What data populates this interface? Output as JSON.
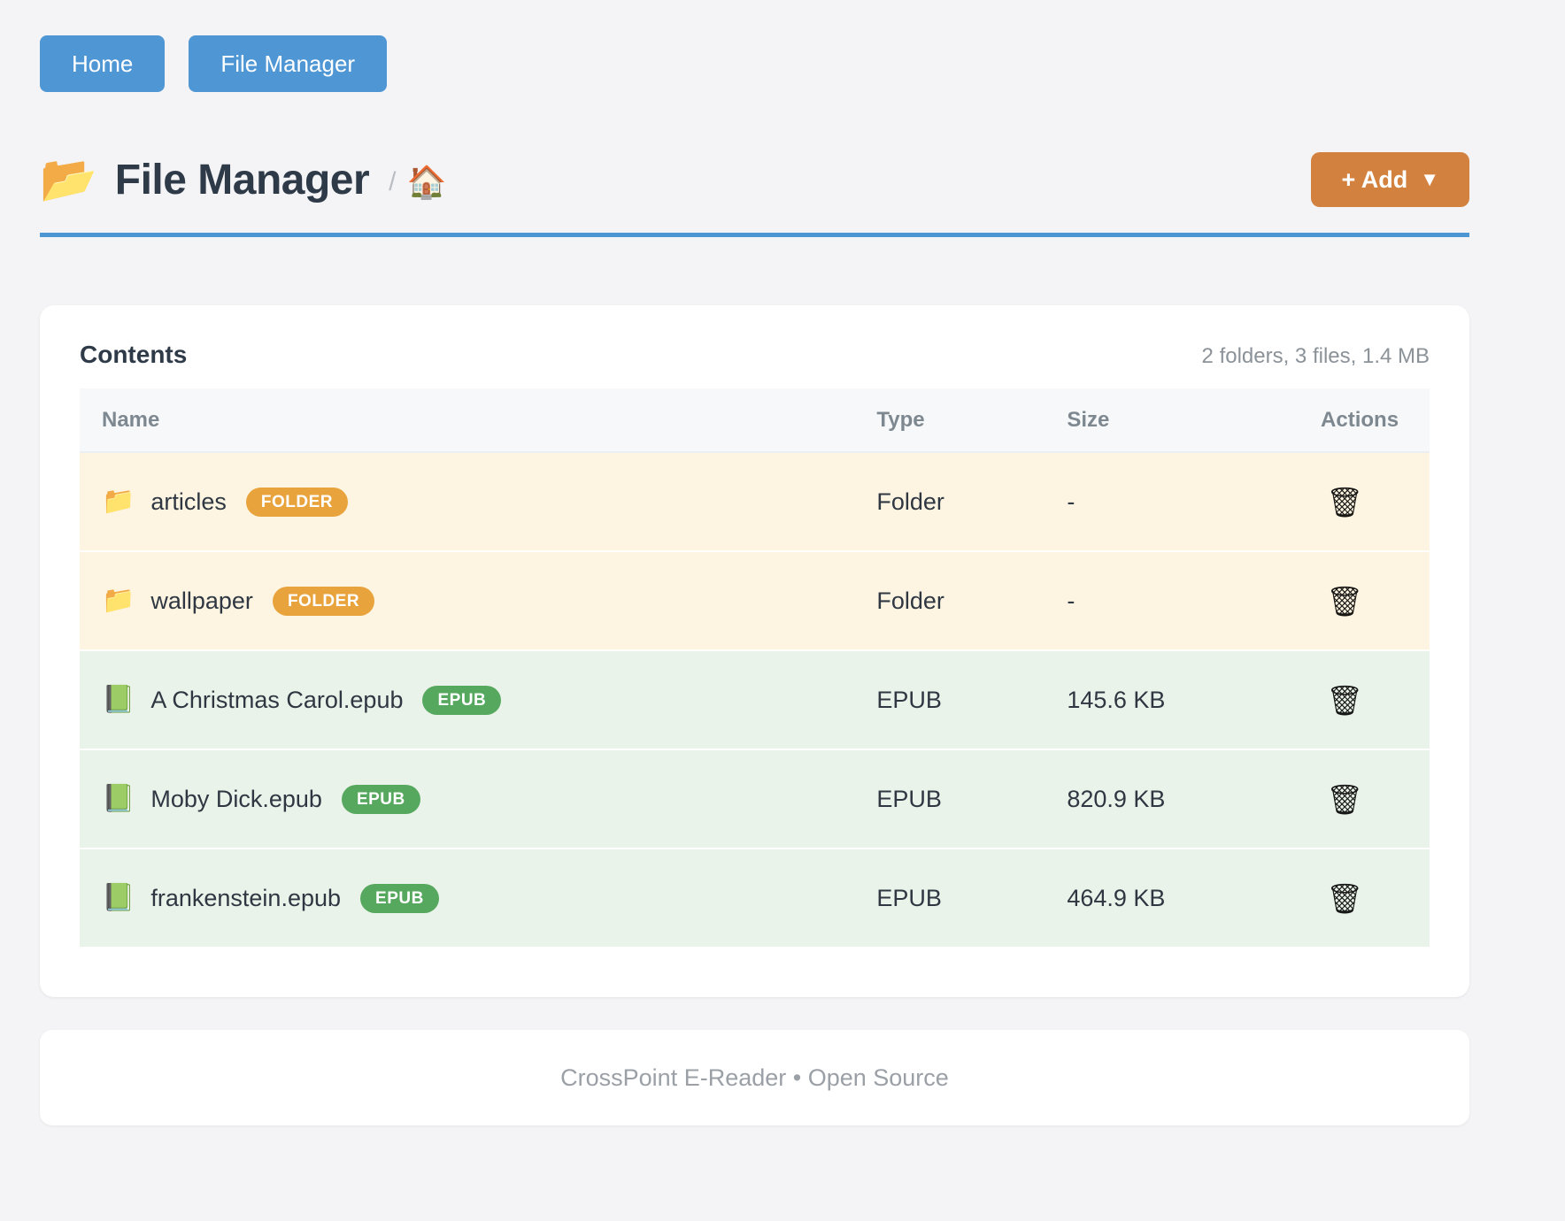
{
  "colors": {
    "page_bg": "#f4f4f6",
    "nav_blue": "#4e96d4",
    "rule_blue": "#4d96d4",
    "add_orange": "#d2823e",
    "folder_badge": "#e8a33c",
    "epub_badge": "#57a85f",
    "folder_row_bg": "#fdf5e1",
    "epub_row_bg": "#e9f3e9"
  },
  "nav": {
    "items": [
      {
        "label": "Home"
      },
      {
        "label": "File Manager"
      }
    ]
  },
  "header": {
    "icon": "📂",
    "title": "File Manager",
    "breadcrumb_separator": "/",
    "breadcrumb_home_icon": "🏠",
    "add_button": {
      "label": "+ Add",
      "caret": "▼"
    }
  },
  "contents": {
    "title": "Contents",
    "summary": "2 folders, 3 files, 1.4 MB",
    "columns": [
      "Name",
      "Type",
      "Size",
      "Actions"
    ],
    "action_icon": "🗑",
    "rows": [
      {
        "icon": "📁",
        "name": "articles",
        "badge": "FOLDER",
        "type": "Folder",
        "size": "-"
      },
      {
        "icon": "📁",
        "name": "wallpaper",
        "badge": "FOLDER",
        "type": "Folder",
        "size": "-"
      },
      {
        "icon": "📗",
        "name": "A Christmas Carol.epub",
        "badge": "EPUB",
        "type": "EPUB",
        "size": "145.6 KB"
      },
      {
        "icon": "📗",
        "name": "Moby Dick.epub",
        "badge": "EPUB",
        "type": "EPUB",
        "size": "820.9 KB"
      },
      {
        "icon": "📗",
        "name": "frankenstein.epub",
        "badge": "EPUB",
        "type": "EPUB",
        "size": "464.9 KB"
      }
    ]
  },
  "footer": {
    "text": "CrossPoint E-Reader • Open Source"
  }
}
